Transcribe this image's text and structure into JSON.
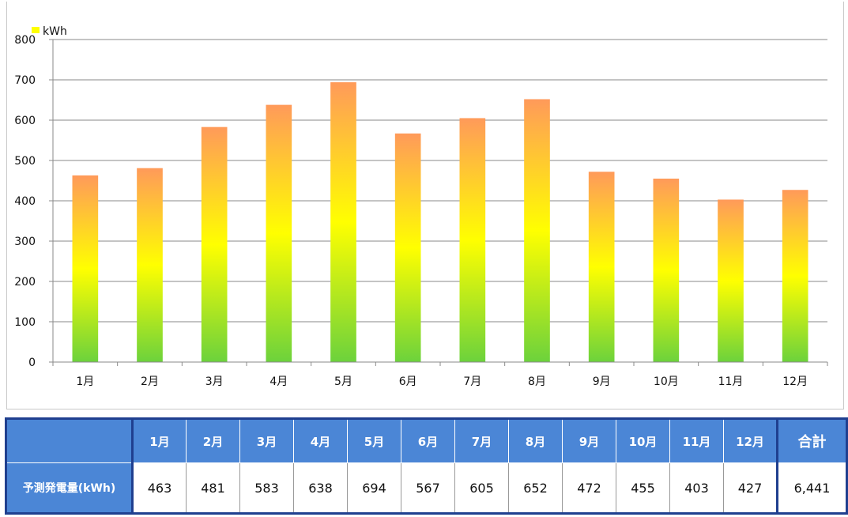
{
  "chart_data": {
    "type": "bar",
    "categories": [
      "1月",
      "2月",
      "3月",
      "4月",
      "5月",
      "6月",
      "7月",
      "8月",
      "9月",
      "10月",
      "11月",
      "12月"
    ],
    "values": [
      463,
      481,
      583,
      638,
      694,
      567,
      605,
      652,
      472,
      455,
      403,
      427
    ],
    "legend": "kWh",
    "ylim": [
      0,
      800
    ],
    "yticks": [
      0,
      100,
      200,
      300,
      400,
      500,
      600,
      700,
      800
    ],
    "grid": true,
    "legend_position": "top-left",
    "colors": {
      "bar_top": "#ff9a5a",
      "bar_mid": "#ffff00",
      "bar_bottom": "#6cd23c",
      "grid": "#8a8a8a"
    }
  },
  "table": {
    "row_label": "予測発電量(kWh)",
    "total_label": "合計",
    "total_value": "6,441",
    "values_text": [
      "463",
      "481",
      "583",
      "638",
      "694",
      "567",
      "605",
      "652",
      "472",
      "455",
      "403",
      "427"
    ]
  }
}
